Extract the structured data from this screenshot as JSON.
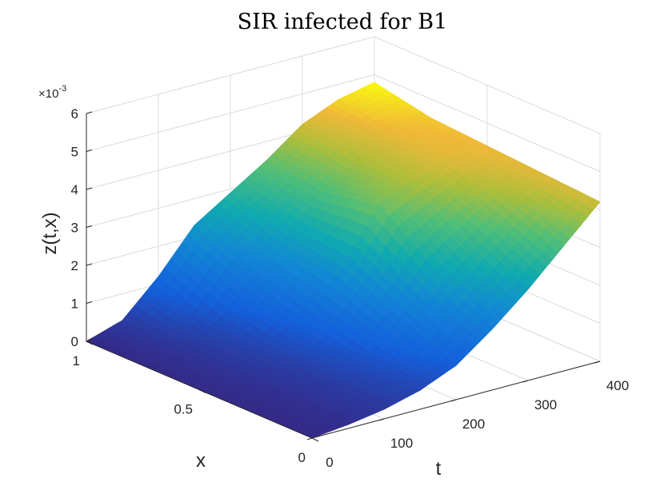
{
  "chart_data": {
    "type": "surface",
    "title": "SIR infected for B1",
    "xlabel": "t",
    "ylabel": "x",
    "zlabel": "z(t,x)",
    "z_multiplier": "×10",
    "z_multiplier_exp": "-3",
    "t_ticks": [
      "0",
      "100",
      "200",
      "300",
      "400"
    ],
    "x_ticks": [
      "0",
      "0.5",
      "1"
    ],
    "z_ticks": [
      "0",
      "1",
      "2",
      "3",
      "4",
      "5",
      "6"
    ],
    "tlim": [
      0,
      400
    ],
    "xlim": [
      0,
      1
    ],
    "zlim": [
      0,
      6
    ],
    "colormap": "parula",
    "grid": true,
    "t_samples": [
      0,
      50,
      100,
      150,
      200,
      250,
      300,
      350,
      400
    ],
    "x_samples": [
      0,
      0.25,
      0.5,
      0.75,
      1
    ],
    "z_values_e3": [
      [
        0.0,
        0.1,
        0.25,
        0.5,
        0.9,
        1.6,
        2.4,
        3.3,
        4.2
      ],
      [
        0.0,
        0.1,
        0.3,
        0.7,
        1.5,
        2.5,
        3.2,
        3.9,
        4.3
      ],
      [
        0.0,
        0.15,
        0.4,
        1.0,
        2.2,
        3.6,
        4.0,
        4.3,
        4.4
      ],
      [
        0.0,
        0.2,
        0.6,
        1.5,
        2.4,
        3.3,
        4.0,
        4.4,
        4.5
      ],
      [
        0.0,
        0.3,
        1.2,
        2.3,
        2.9,
        3.5,
        4.2,
        4.6,
        4.8
      ]
    ]
  }
}
